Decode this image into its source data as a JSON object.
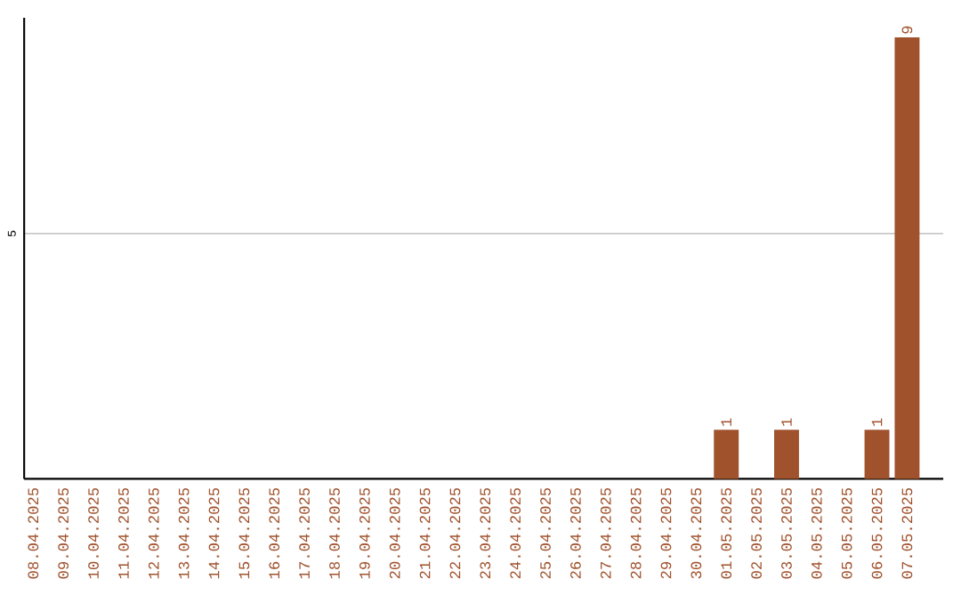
{
  "chart_data": {
    "type": "bar",
    "categories": [
      "08.04.2025",
      "09.04.2025",
      "10.04.2025",
      "11.04.2025",
      "12.04.2025",
      "13.04.2025",
      "14.04.2025",
      "15.04.2025",
      "16.04.2025",
      "17.04.2025",
      "18.04.2025",
      "19.04.2025",
      "20.04.2025",
      "21.04.2025",
      "22.04.2025",
      "23.04.2025",
      "24.04.2025",
      "25.04.2025",
      "26.04.2025",
      "27.04.2025",
      "28.04.2025",
      "29.04.2025",
      "30.04.2025",
      "01.05.2025",
      "02.05.2025",
      "03.05.2025",
      "04.05.2025",
      "05.05.2025",
      "06.05.2025",
      "07.05.2025"
    ],
    "values": [
      null,
      null,
      null,
      null,
      null,
      null,
      null,
      null,
      null,
      null,
      null,
      null,
      null,
      null,
      null,
      null,
      null,
      null,
      null,
      null,
      null,
      null,
      null,
      1,
      null,
      1,
      null,
      null,
      1,
      9
    ],
    "value_labels": [
      null,
      null,
      null,
      null,
      null,
      null,
      null,
      null,
      null,
      null,
      null,
      null,
      null,
      null,
      null,
      null,
      null,
      null,
      null,
      null,
      null,
      null,
      null,
      "1",
      null,
      "1",
      null,
      null,
      "1",
      "9"
    ],
    "color": "#a0522d",
    "ylim": [
      0,
      9.4
    ],
    "yticks": [
      5
    ],
    "grid": "y"
  }
}
